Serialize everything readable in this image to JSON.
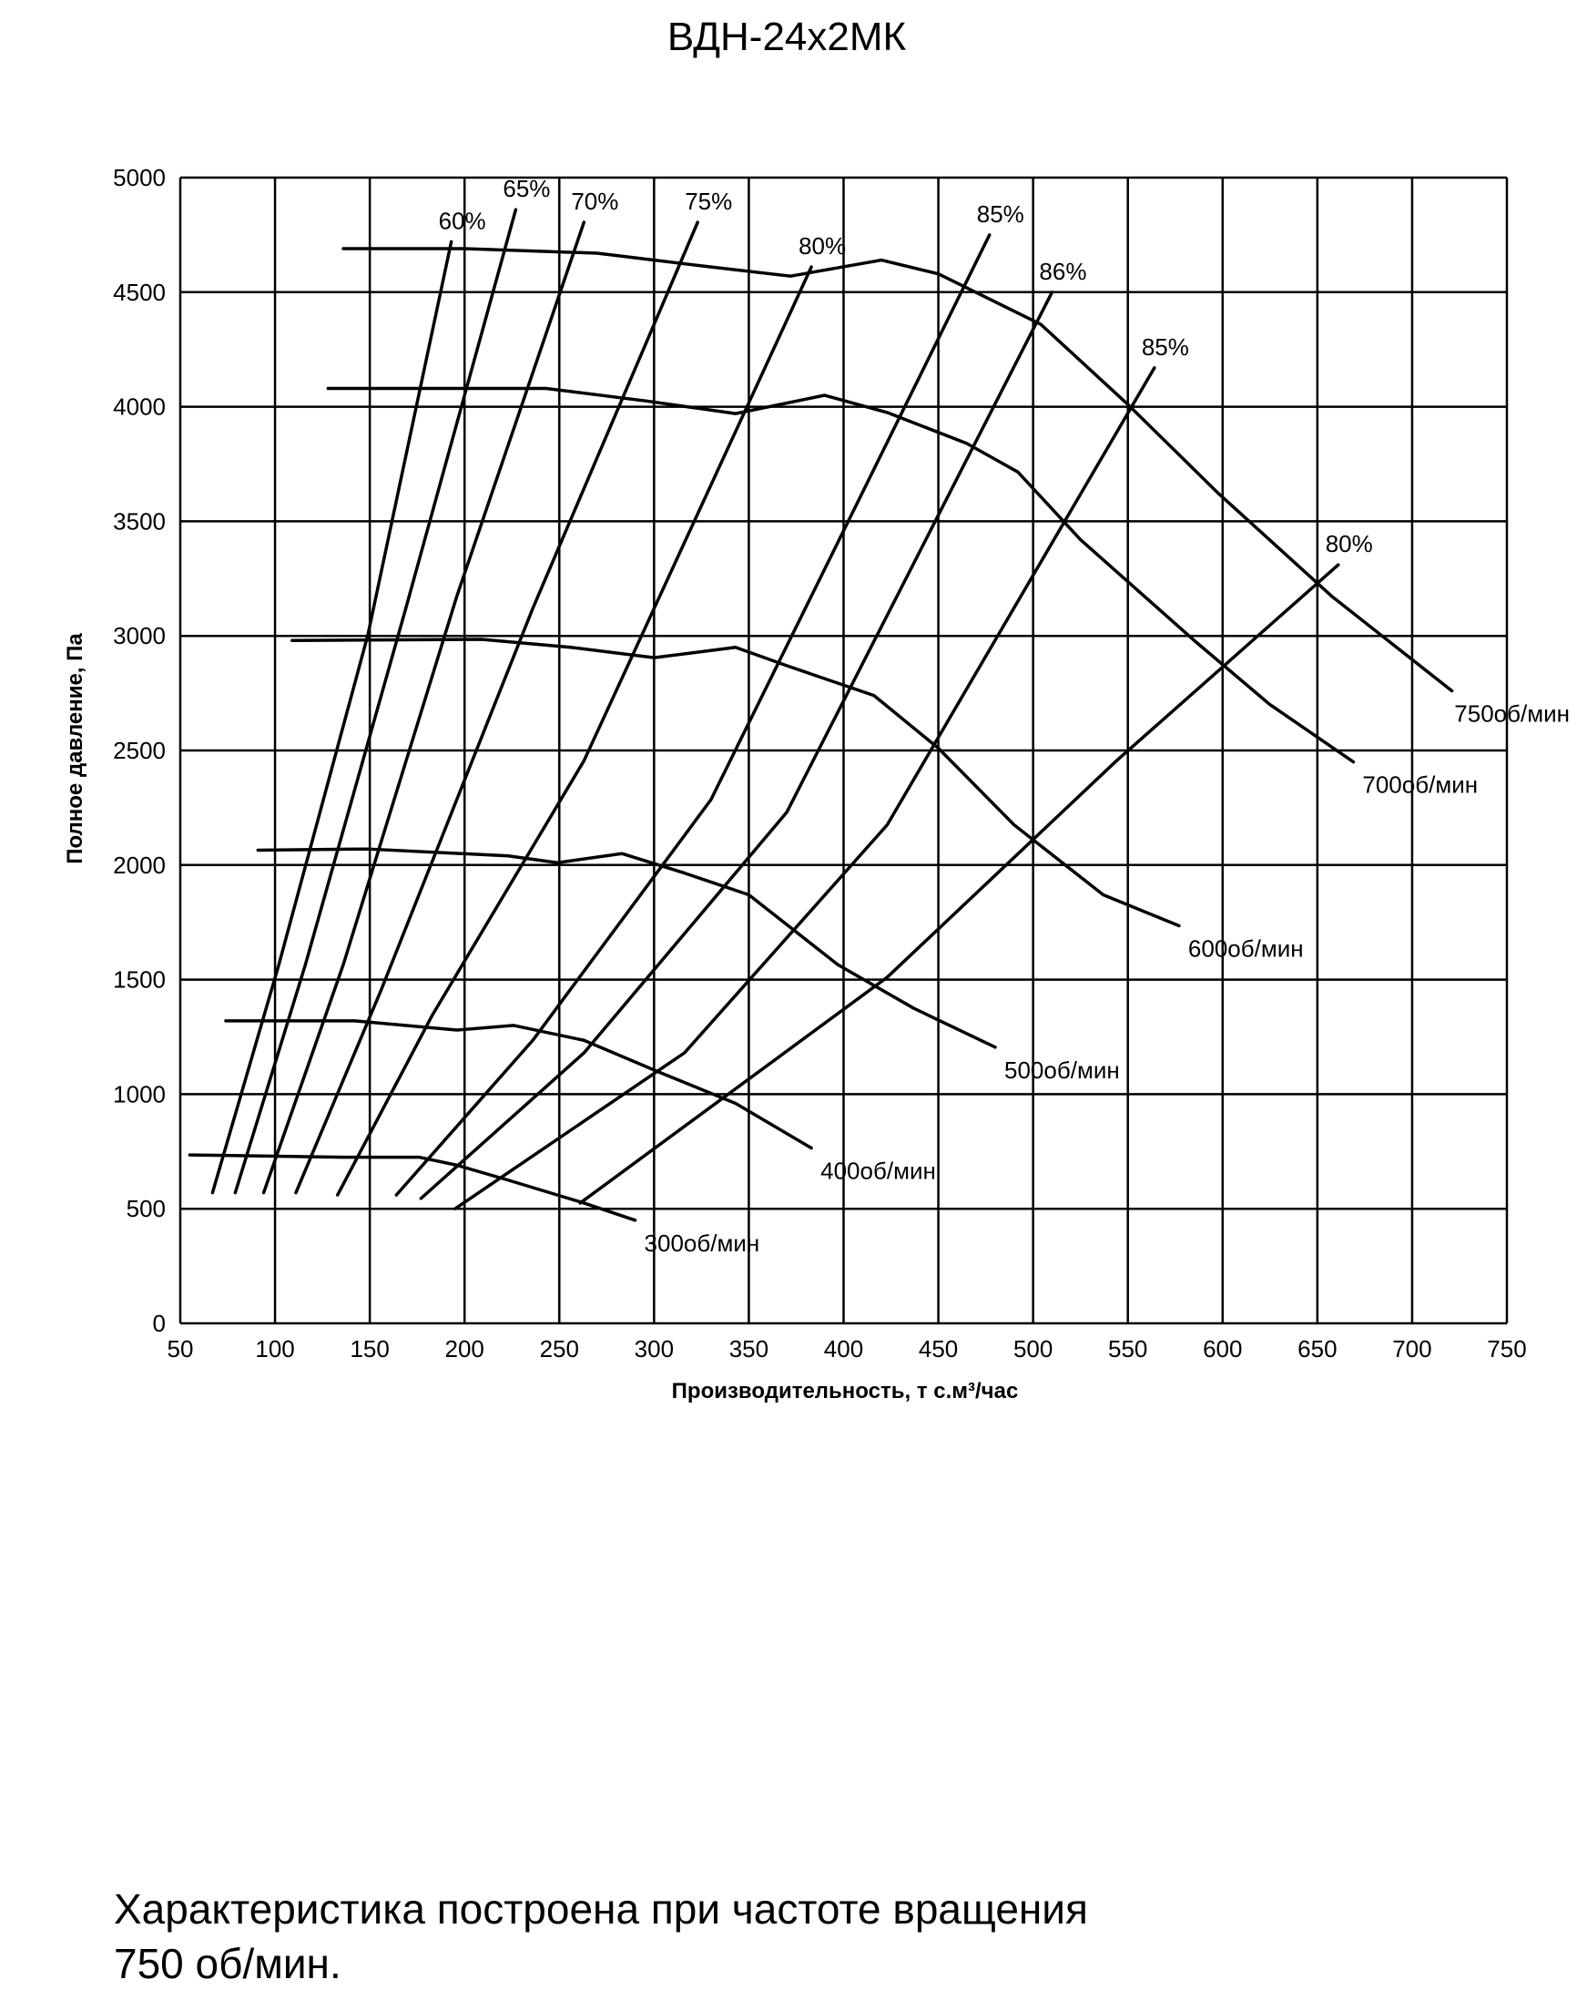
{
  "chart_data": {
    "type": "line",
    "title": "ВДН-24х2МК",
    "x_label": "Производительность, т  с.м³/час",
    "y_label": "Полное давление,  Па",
    "xlim": [
      50,
      750
    ],
    "xticks": [
      50,
      100,
      150,
      200,
      250,
      300,
      350,
      400,
      450,
      500,
      550,
      600,
      650,
      700,
      750
    ],
    "ylim": [
      0,
      5000
    ],
    "yticks": [
      0,
      500,
      1000,
      1500,
      2000,
      2500,
      3000,
      3500,
      4000,
      4500,
      5000
    ],
    "grid": true,
    "series": [
      {
        "name": "750об/мин",
        "color": "#000000",
        "x": [
          136,
          200,
          270,
          330,
          372,
          420,
          450,
          504,
          550,
          598,
          658,
          721
        ],
        "values": [
          4690,
          4690,
          4670,
          4610,
          4570,
          4640,
          4580,
          4360,
          4010,
          3620,
          3170,
          2760
        ]
      },
      {
        "name": "700об/мин",
        "color": "#000000",
        "x": [
          128,
          243,
          296,
          343,
          390,
          423,
          465,
          492,
          525,
          585,
          625,
          669
        ],
        "values": [
          4080,
          4080,
          4025,
          3970,
          4050,
          3975,
          3840,
          3715,
          3420,
          2980,
          2700,
          2450
        ]
      },
      {
        "name": "600об/мин",
        "color": "#000000",
        "x": [
          109,
          209,
          256,
          300,
          343,
          370,
          416,
          450,
          490,
          537,
          577
        ],
        "values": [
          2980,
          2985,
          2950,
          2905,
          2950,
          2870,
          2740,
          2510,
          2175,
          1870,
          1735
        ]
      },
      {
        "name": "500об/мин",
        "color": "#000000",
        "x": [
          91,
          149,
          223,
          249,
          283,
          316,
          350,
          397,
          437,
          480
        ],
        "values": [
          2065,
          2070,
          2040,
          2010,
          2050,
          1965,
          1870,
          1565,
          1375,
          1205
        ]
      },
      {
        "name": "400об/мин",
        "color": "#000000",
        "x": [
          74,
          142,
          196,
          226,
          263,
          303,
          343,
          383
        ],
        "values": [
          1320,
          1320,
          1280,
          1300,
          1235,
          1095,
          960,
          765
        ]
      },
      {
        "name": "300об/мин",
        "color": "#000000",
        "x": [
          55,
          136,
          176,
          196,
          223,
          263,
          290
        ],
        "values": [
          735,
          725,
          725,
          690,
          625,
          525,
          450
        ]
      },
      {
        "name": "60%",
        "color": "#000000",
        "x": [
          67,
          102,
          149,
          193
        ],
        "values": [
          570,
          1565,
          3005,
          4720
        ]
      },
      {
        "name": "65%",
        "color": "#000000",
        "x": [
          79,
          116,
          169,
          227
        ],
        "values": [
          570,
          1565,
          3120,
          4860
        ]
      },
      {
        "name": "70%",
        "color": "#000000",
        "x": [
          94,
          136,
          196,
          263
        ],
        "values": [
          570,
          1565,
          3175,
          4805
        ]
      },
      {
        "name": "75%",
        "color": "#000000",
        "x": [
          111,
          156,
          236,
          323
        ],
        "values": [
          570,
          1455,
          3120,
          4805
        ]
      },
      {
        "name": "80%",
        "color": "#000000",
        "x": [
          133,
          183,
          263,
          383
        ],
        "values": [
          560,
          1345,
          2455,
          4610
        ]
      },
      {
        "name": "85%",
        "color": "#000000",
        "x": [
          164,
          236,
          330,
          477
        ],
        "values": [
          560,
          1235,
          2285,
          4750
        ]
      },
      {
        "name": "86%",
        "color": "#000000",
        "x": [
          177,
          263,
          370,
          510
        ],
        "values": [
          545,
          1180,
          2230,
          4500
        ]
      },
      {
        "name": "85%",
        "color": "#000000",
        "x": [
          195,
          316,
          423,
          564
        ],
        "values": [
          500,
          1180,
          2175,
          4170
        ]
      },
      {
        "name": "80%",
        "color": "#000000",
        "x": [
          261,
          423,
          544,
          661
        ],
        "values": [
          525,
          1510,
          2455,
          3310
        ]
      }
    ],
    "note": [
      "Характеристика построена при частоте вращения",
      "750 об/мин."
    ]
  }
}
